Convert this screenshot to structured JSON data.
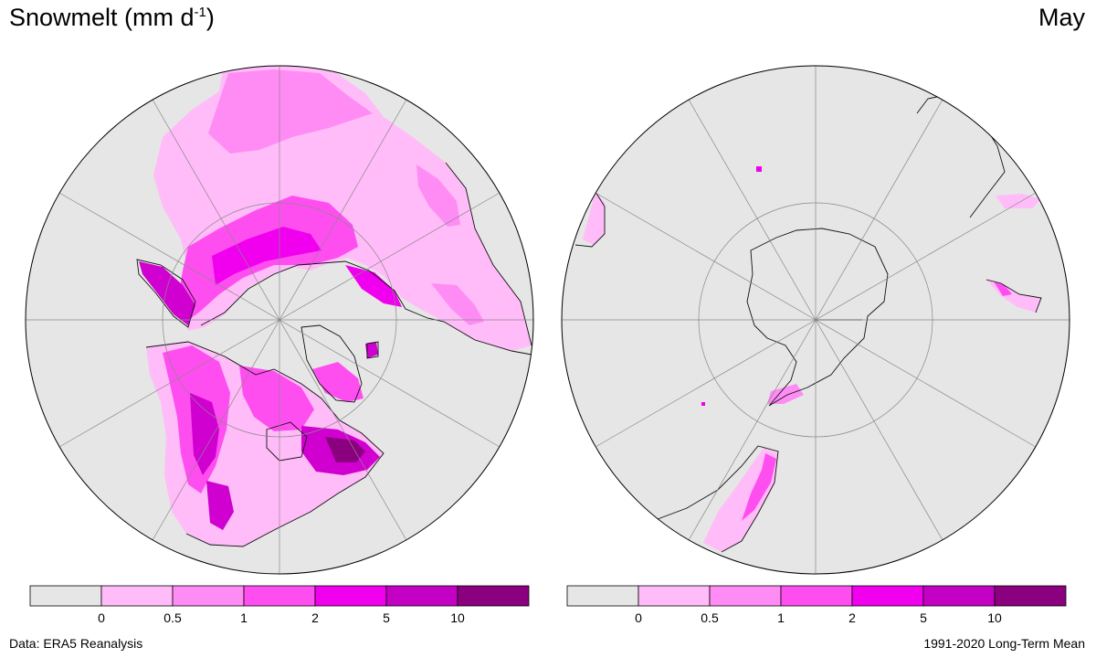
{
  "title": {
    "main": "Snowmelt (mm d",
    "sup": "-1",
    "close": ")"
  },
  "period": "May",
  "footer": {
    "source": "Data: ERA5 Reanalysis",
    "climatology": "1991-2020 Long-Term Mean"
  },
  "colors": {
    "ocean": "#e6e6e6",
    "bins": [
      "#e6e6e6",
      "#ffbcf8",
      "#ff8cf4",
      "#ff4ef0",
      "#f000ee",
      "#c400c4",
      "#8a007e"
    ]
  },
  "colorbar": {
    "ticks": [
      "0",
      "0.5",
      "1",
      "2",
      "5",
      "10"
    ]
  },
  "maps": [
    {
      "name": "northern-hemisphere"
    },
    {
      "name": "southern-hemisphere"
    }
  ]
}
